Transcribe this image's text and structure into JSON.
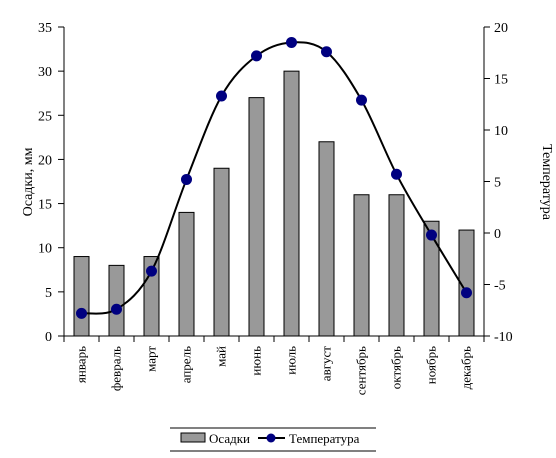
{
  "chart_data": {
    "type": "bar",
    "categories": [
      "январь",
      "февраль",
      "март",
      "апрель",
      "май",
      "июнь",
      "июль",
      "август",
      "сентябрь",
      "октябрь",
      "ноябрь",
      "декабрь"
    ],
    "series": [
      {
        "name": "Осадки",
        "type": "bar",
        "axis": "left",
        "values": [
          9,
          8,
          9,
          14,
          19,
          27,
          30,
          22,
          16,
          16,
          13,
          12
        ]
      },
      {
        "name": "Температура",
        "type": "line",
        "axis": "right",
        "smooth": true,
        "values": [
          -7.8,
          -7.4,
          -3.7,
          5.2,
          13.3,
          17.2,
          18.5,
          17.6,
          12.9,
          5.7,
          -0.2,
          -5.8
        ]
      }
    ],
    "y_left": {
      "label": "Осадки, мм",
      "range": [
        0,
        35
      ],
      "ticks": [
        0,
        5,
        10,
        15,
        20,
        25,
        30,
        35
      ]
    },
    "y_right": {
      "label": "Температура",
      "range": [
        -10,
        20
      ],
      "ticks": [
        -10,
        -5,
        0,
        5,
        10,
        15,
        20
      ]
    },
    "grid": false,
    "legend": "bottom",
    "colors": {
      "bar_fill": "#999999",
      "bar_stroke": "#000000",
      "line": "#000000",
      "marker": "#000080"
    }
  }
}
